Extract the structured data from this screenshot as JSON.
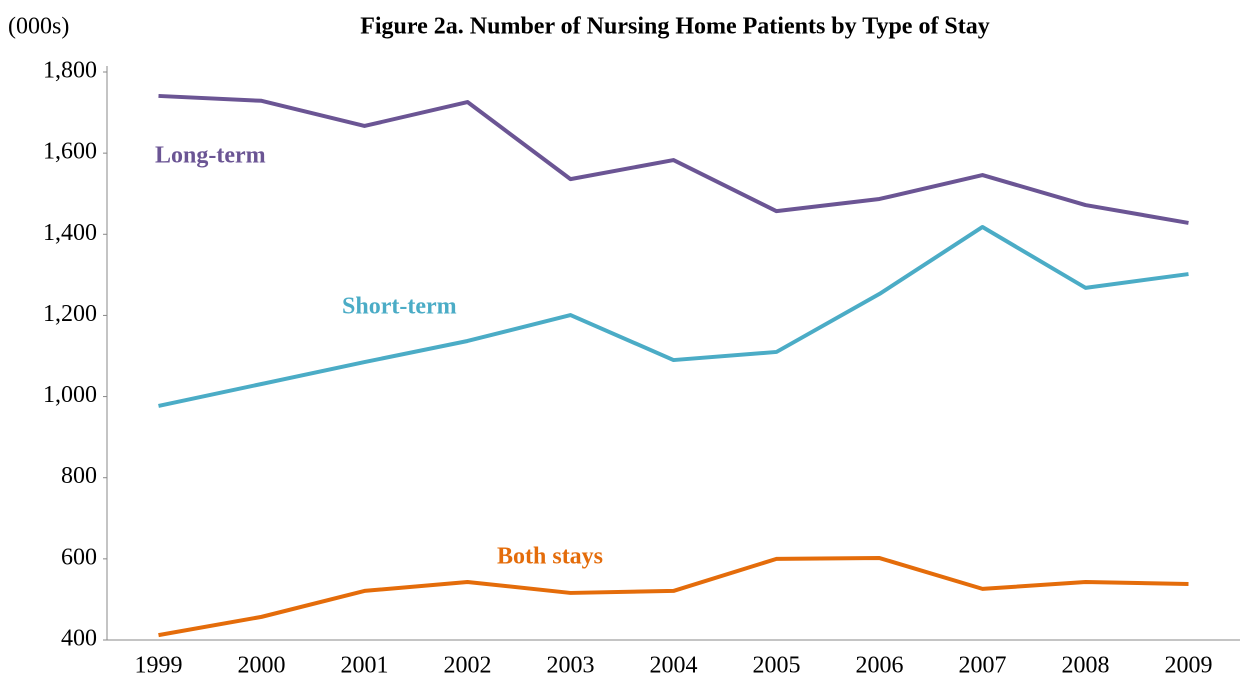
{
  "chart_data": {
    "type": "line",
    "title": "Figure 2a. Number of Nursing Home Patients by Type of Stay",
    "ylabel": "(000s)",
    "categories": [
      "1999",
      "2000",
      "2001",
      "2002",
      "2003",
      "2004",
      "2005",
      "2006",
      "2007",
      "2008",
      "2009"
    ],
    "series": [
      {
        "name": "Long-term",
        "color": "#6b5594",
        "values": [
          1741,
          1729,
          1667,
          1726,
          1536,
          1583,
          1457,
          1487,
          1546,
          1472,
          1428
        ]
      },
      {
        "name": "Short-term",
        "color": "#4bacc6",
        "values": [
          977,
          1031,
          1085,
          1137,
          1201,
          1090,
          1110,
          1253,
          1418,
          1268,
          1302
        ]
      },
      {
        "name": "Both stays",
        "color": "#e46c0a",
        "values": [
          412,
          457,
          521,
          543,
          516,
          521,
          600,
          602,
          526,
          543,
          538
        ]
      }
    ],
    "ylim": [
      400,
      1800
    ],
    "yticks": [
      400,
      600,
      800,
      {
        "value": 1000,
        "label": "1,000"
      },
      {
        "value": 1200,
        "label": "1,200"
      },
      {
        "value": 1400,
        "label": "1,400"
      },
      {
        "value": 1600,
        "label": "1,600"
      },
      {
        "value": 1800,
        "label": "1,800"
      }
    ],
    "grid": false
  }
}
